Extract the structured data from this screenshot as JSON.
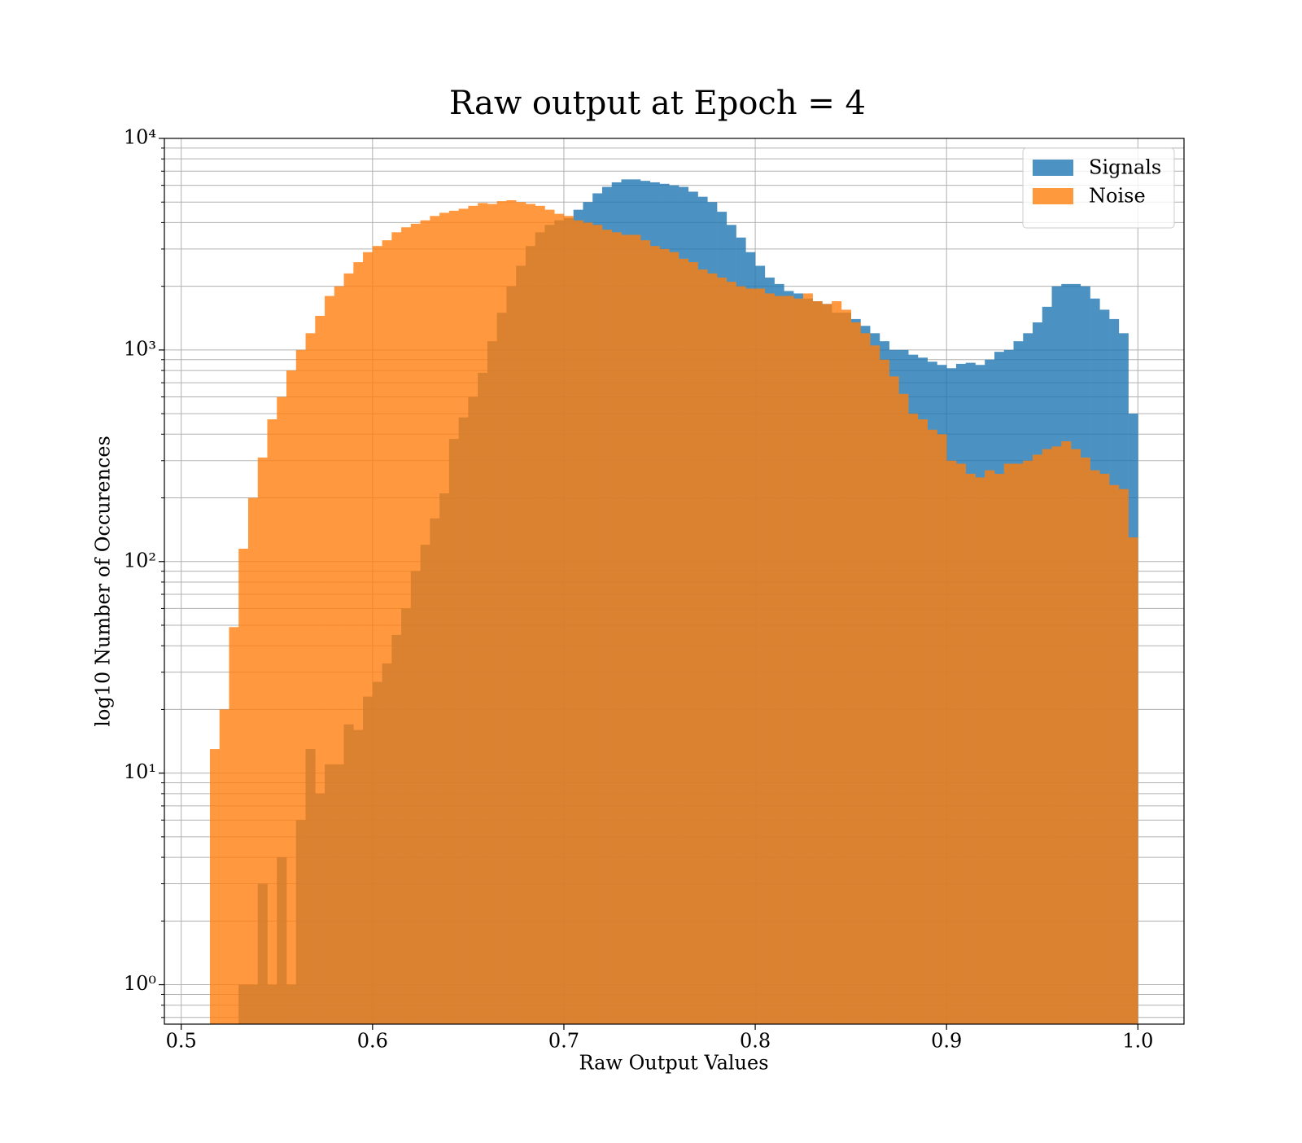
{
  "chart_data": {
    "type": "histogram",
    "title": "Raw output at Epoch = 4",
    "x_label": "Raw Output Values",
    "y_label": "log10 Number of Occurences",
    "bins": [
      0.515,
      0.52,
      0.525,
      0.53,
      0.535,
      0.54,
      0.545,
      0.55,
      0.555,
      0.56,
      0.565,
      0.57,
      0.575,
      0.58,
      0.585,
      0.59,
      0.595,
      0.6,
      0.605,
      0.61,
      0.615,
      0.62,
      0.625,
      0.63,
      0.635,
      0.64,
      0.645,
      0.65,
      0.655,
      0.66,
      0.665,
      0.67,
      0.675,
      0.68,
      0.685,
      0.69,
      0.695,
      0.7,
      0.705,
      0.71,
      0.715,
      0.72,
      0.725,
      0.73,
      0.735,
      0.74,
      0.745,
      0.75,
      0.755,
      0.76,
      0.765,
      0.77,
      0.775,
      0.78,
      0.785,
      0.79,
      0.795,
      0.8,
      0.805,
      0.81,
      0.815,
      0.82,
      0.825,
      0.83,
      0.835,
      0.84,
      0.845,
      0.85,
      0.855,
      0.86,
      0.865,
      0.87,
      0.875,
      0.88,
      0.885,
      0.89,
      0.895,
      0.9,
      0.905,
      0.91,
      0.915,
      0.92,
      0.925,
      0.93,
      0.935,
      0.94,
      0.945,
      0.95,
      0.955,
      0.96,
      0.965,
      0.97,
      0.975,
      0.98,
      0.985,
      0.99,
      0.995,
      1.0
    ],
    "series": [
      {
        "name": "Signals",
        "color": "#1f77b4",
        "values": [
          0,
          0,
          0,
          1,
          1,
          3,
          1,
          4,
          1,
          6,
          13,
          8,
          11,
          11,
          17,
          16,
          23,
          27,
          33,
          45,
          60,
          90,
          120,
          160,
          210,
          380,
          480,
          600,
          780,
          1100,
          1500,
          2000,
          2500,
          3100,
          3600,
          3900,
          4100,
          4200,
          4600,
          5000,
          5500,
          5900,
          6200,
          6400,
          6400,
          6300,
          6200,
          6100,
          6000,
          5900,
          5600,
          5300,
          5000,
          4500,
          3900,
          3400,
          2900,
          2500,
          2200,
          2050,
          1900,
          1850,
          1750,
          1700,
          1650,
          1500,
          1500,
          1400,
          1300,
          1200,
          1100,
          1000,
          1000,
          950,
          920,
          880,
          850,
          820,
          860,
          870,
          850,
          900,
          980,
          1000,
          1100,
          1200,
          1350,
          1600,
          2000,
          2050,
          2050,
          2000,
          1750,
          1550,
          1400,
          1200,
          500
        ]
      },
      {
        "name": "Noise",
        "color": "#ff7f0e",
        "values": [
          13,
          20,
          49,
          115,
          200,
          310,
          470,
          600,
          800,
          1000,
          1200,
          1450,
          1800,
          2000,
          2300,
          2600,
          2900,
          3100,
          3300,
          3600,
          3800,
          3950,
          4100,
          4300,
          4450,
          4550,
          4650,
          4800,
          4950,
          4900,
          5050,
          5100,
          5000,
          4900,
          4800,
          4600,
          4400,
          4300,
          4100,
          4000,
          3900,
          3700,
          3600,
          3500,
          3500,
          3300,
          3100,
          3000,
          2900,
          2700,
          2600,
          2400,
          2300,
          2200,
          2100,
          2000,
          1950,
          1950,
          1850,
          1800,
          1800,
          1750,
          1850,
          1700,
          1650,
          1700,
          1550,
          1350,
          1200,
          1050,
          900,
          750,
          620,
          500,
          470,
          420,
          400,
          300,
          290,
          260,
          250,
          270,
          260,
          290,
          290,
          300,
          320,
          340,
          350,
          370,
          340,
          310,
          270,
          260,
          230,
          220,
          130
        ]
      }
    ],
    "opacity": 0.8,
    "xlim": [
      0.4912,
      1.0241
    ],
    "ylim": [
      0.651,
      10000
    ],
    "log_y": true,
    "xticks": [
      0.5,
      0.6,
      0.7,
      0.8,
      0.9,
      {
        "value": 1,
        "label": "1.0"
      }
    ],
    "yticks": [
      {
        "value": 1,
        "label": "10⁰"
      },
      {
        "value": 10,
        "label": "10¹"
      },
      {
        "value": 100,
        "label": "10²"
      },
      {
        "value": 1000,
        "label": "10³"
      },
      {
        "value": 10000,
        "label": "10⁴"
      }
    ],
    "yminorticks": [
      0.7,
      0.8,
      0.9,
      2,
      3,
      4,
      5,
      6,
      7,
      8,
      9,
      20,
      30,
      40,
      50,
      60,
      70,
      80,
      90,
      200,
      300,
      400,
      500,
      600,
      700,
      800,
      900,
      2000,
      3000,
      4000,
      5000,
      6000,
      7000,
      8000,
      9000
    ],
    "grid": true,
    "legend": "upper right"
  }
}
